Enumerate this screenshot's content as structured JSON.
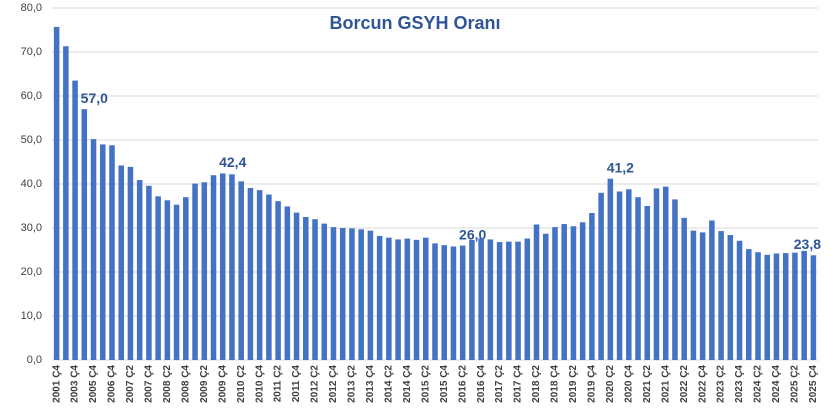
{
  "chart_data": {
    "type": "bar",
    "title": "Borcun GSYH Oranı",
    "categories": [
      "2001 Ç4",
      null,
      "2003 Ç4",
      null,
      "2005 Ç4",
      null,
      "2006 Ç4",
      null,
      "2007 Ç2",
      null,
      "2007 Ç4",
      null,
      "2008 Ç2",
      null,
      "2008 Ç4",
      null,
      "2009 Ç2",
      null,
      "2009 Ç4",
      null,
      "2010 Ç2",
      null,
      "2010 Ç4",
      null,
      "2011 Ç2",
      null,
      "2011 Ç4",
      null,
      "2012 Ç2",
      null,
      "2012 Ç4",
      null,
      "2013 Ç2",
      null,
      "2013 Ç4",
      null,
      "2014 Ç2",
      null,
      "2014 Ç4",
      null,
      "2015 Ç2",
      null,
      "2015 Ç4",
      null,
      "2016 Ç2",
      null,
      "2016 Ç4",
      null,
      "2017 Ç2",
      null,
      "2017 Ç4",
      null,
      "2018 Ç2",
      null,
      "2018 Ç4",
      null,
      "2019 Ç2",
      null,
      "2019 Ç4",
      null,
      "2020 Ç2",
      null,
      "2020 Ç4",
      null,
      "2021 Ç2",
      null,
      "2021 Ç4",
      null,
      "2022 Ç2",
      null,
      "2022 Ç4",
      null,
      "2023 Ç2",
      null,
      "2023 Ç4",
      null,
      "2024 Ç2",
      null,
      "2024 Ç4",
      null,
      "2025 Ç2",
      null,
      "2025 Ç4"
    ],
    "values": [
      75.7,
      71.3,
      63.5,
      57.0,
      50.2,
      49.0,
      48.8,
      44.2,
      43.9,
      40.9,
      39.6,
      37.2,
      36.3,
      35.3,
      37.0,
      40.1,
      40.4,
      42.0,
      42.4,
      42.2,
      40.6,
      39.1,
      38.6,
      37.6,
      36.1,
      34.9,
      33.5,
      32.5,
      32.0,
      31.0,
      30.2,
      30.0,
      29.9,
      29.7,
      29.4,
      28.2,
      27.8,
      27.4,
      27.6,
      27.3,
      27.8,
      26.5,
      26.1,
      25.8,
      26.0,
      27.3,
      27.6,
      27.4,
      26.8,
      26.9,
      26.9,
      27.6,
      30.8,
      28.7,
      30.2,
      30.9,
      30.4,
      31.3,
      33.4,
      38.0,
      41.2,
      38.3,
      38.8,
      37.0,
      35.0,
      39.0,
      39.4,
      36.5,
      32.3,
      29.4,
      29.0,
      31.7,
      29.3,
      28.4,
      27.1,
      25.2,
      24.5,
      23.9,
      24.2,
      24.3,
      24.4,
      24.8,
      23.8
    ],
    "value_labels": [
      null,
      null,
      null,
      "57,0",
      null,
      null,
      null,
      null,
      null,
      null,
      null,
      null,
      null,
      null,
      null,
      null,
      null,
      null,
      "42,4",
      null,
      null,
      null,
      null,
      null,
      null,
      null,
      null,
      null,
      null,
      null,
      null,
      null,
      null,
      null,
      null,
      null,
      null,
      null,
      null,
      null,
      null,
      null,
      null,
      null,
      "26,0",
      null,
      null,
      null,
      null,
      null,
      null,
      null,
      null,
      null,
      null,
      null,
      null,
      null,
      null,
      null,
      "41,2",
      null,
      null,
      null,
      null,
      null,
      null,
      null,
      null,
      null,
      null,
      null,
      null,
      null,
      null,
      null,
      null,
      null,
      null,
      null,
      null,
      null,
      "23,8"
    ],
    "color": "#4472c4",
    "ylim": [
      0,
      80
    ],
    "yticks": [
      {
        "value": 0,
        "label": "0,0"
      },
      {
        "value": 10,
        "label": "10,0"
      },
      {
        "value": 20,
        "label": "20,0"
      },
      {
        "value": 30,
        "label": "30,0"
      },
      {
        "value": 40,
        "label": "40,0"
      },
      {
        "value": 50,
        "label": "50,0"
      },
      {
        "value": 60,
        "label": "60,0"
      },
      {
        "value": 70,
        "label": "70,0"
      },
      {
        "value": 80,
        "label": "80,0"
      }
    ],
    "grid": true
  }
}
